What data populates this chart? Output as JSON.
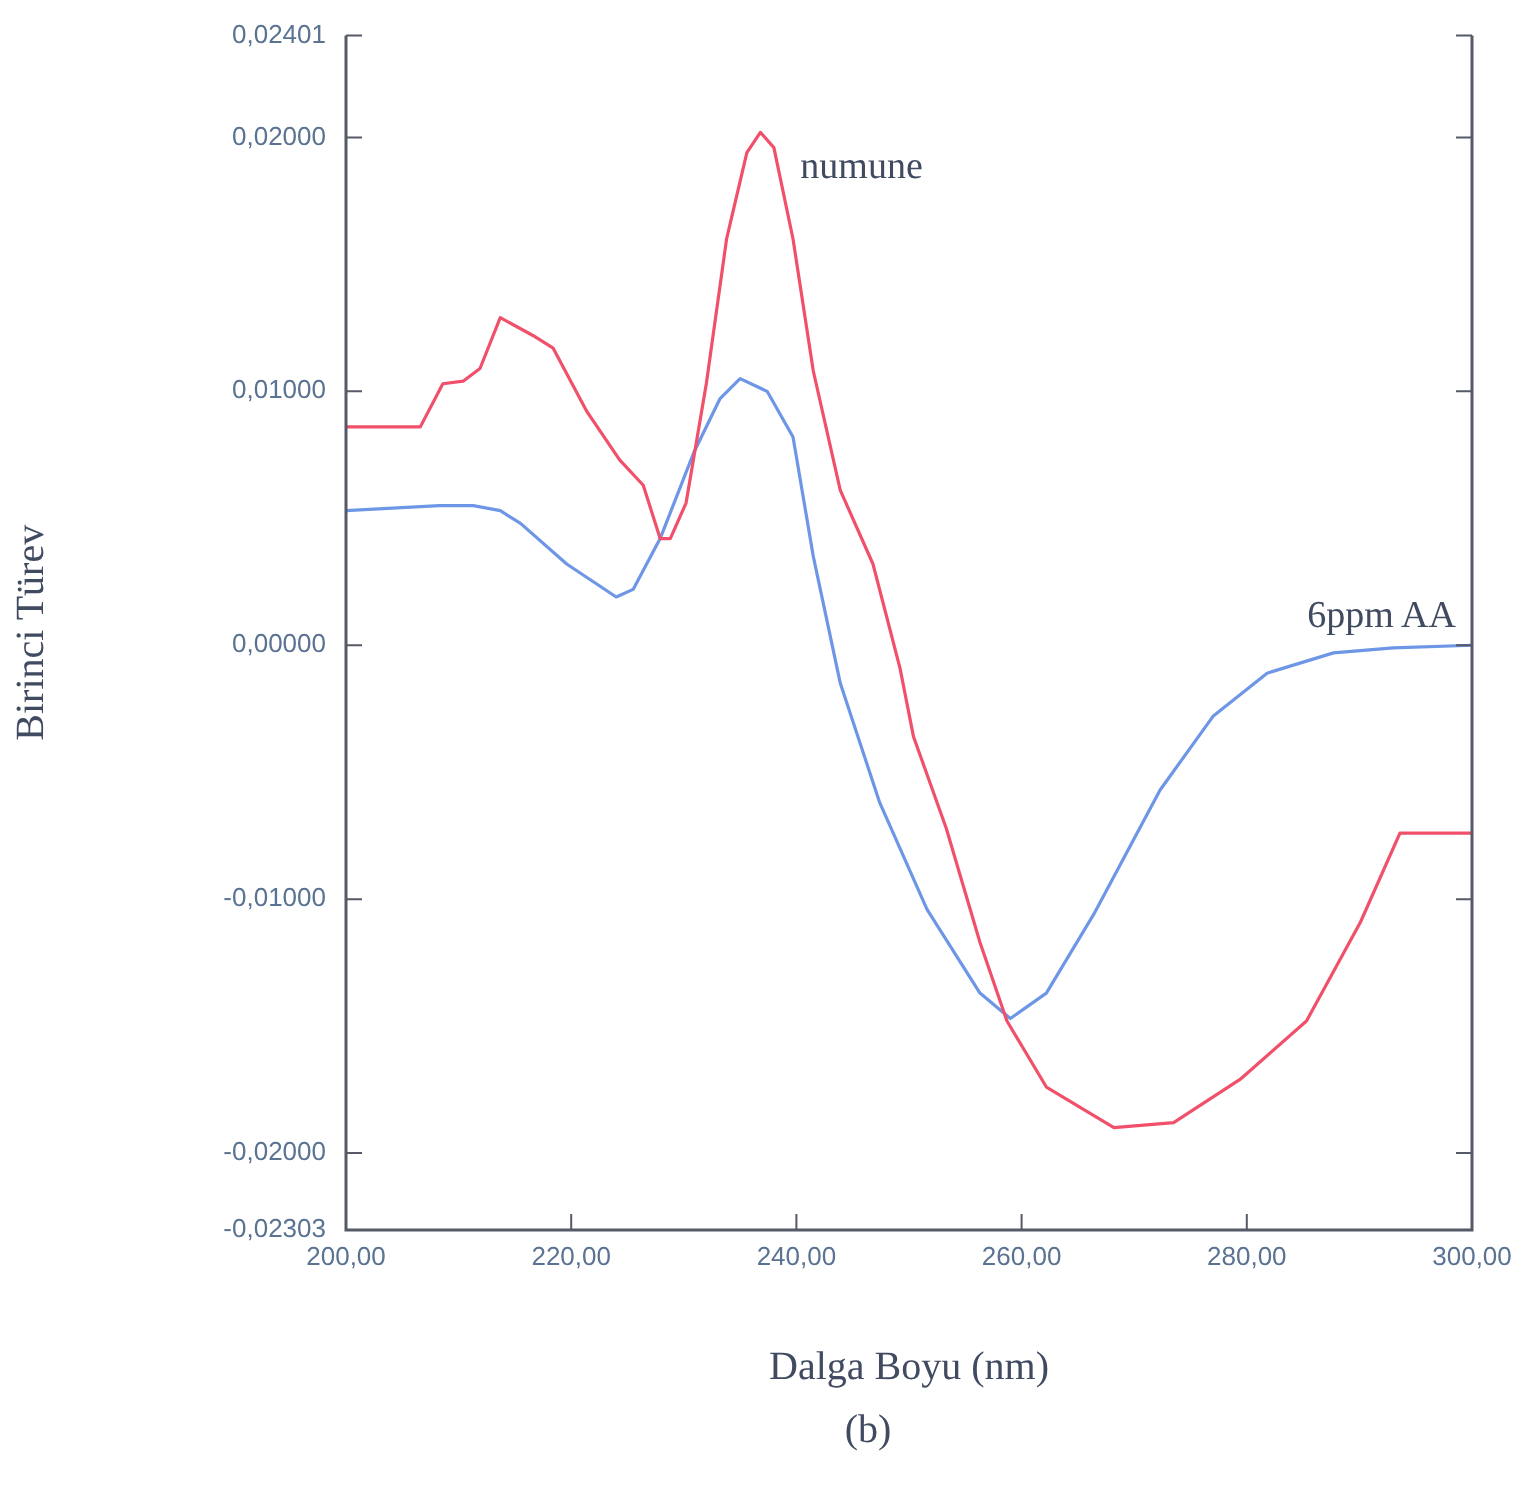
{
  "chart_data": {
    "type": "line",
    "xlabel": "Dalga Boyu (nm)",
    "ylabel": "Birinci Türev",
    "annotations": [
      "(b)"
    ],
    "xlim": [
      200,
      300
    ],
    "xticks": [
      {
        "value": 200,
        "label": "200,00"
      },
      {
        "value": 220,
        "label": "220,00"
      },
      {
        "value": 240,
        "label": "240,00"
      },
      {
        "value": 260,
        "label": "260,00"
      },
      {
        "value": 280,
        "label": "280,00"
      },
      {
        "value": 300,
        "label": "300,00"
      }
    ],
    "ylim": [
      -0.02303,
      0.02401
    ],
    "yticks": [
      {
        "value": -0.02303,
        "label": "-0,02303"
      },
      {
        "value": -0.02,
        "label": "-0,02000"
      },
      {
        "value": -0.01,
        "label": "-0,01000"
      },
      {
        "value": 0,
        "label": "0,00000"
      },
      {
        "value": 0.01,
        "label": "0,01000"
      },
      {
        "value": 0.02,
        "label": "0,02000"
      },
      {
        "value": 0.02401,
        "label": "0,02401"
      }
    ],
    "marker": "none",
    "line_style": "solid",
    "series": [
      {
        "name": "numune",
        "color": "#f0506a",
        "x": [
          200,
          206.6,
          208.6,
          210.4,
          211.9,
          213.7,
          216.6,
          218.4,
          221.4,
          224.3,
          226.4,
          227.9,
          228.8,
          230.2,
          232.0,
          233.8,
          235.6,
          236.8,
          238.0,
          239.7,
          241.5,
          243.9,
          246.8,
          249.2,
          250.4,
          253.3,
          256.3,
          258.7,
          262.2,
          268.2,
          273.5,
          279.4,
          285.3,
          290.1,
          293.6,
          300
        ],
        "values": [
          0.0086,
          0.0086,
          0.0103,
          0.0104,
          0.0109,
          0.0129,
          0.0122,
          0.0117,
          0.0092,
          0.0073,
          0.0063,
          0.0042,
          0.0042,
          0.0056,
          0.0103,
          0.016,
          0.0194,
          0.0202,
          0.0196,
          0.016,
          0.0108,
          0.0061,
          0.0032,
          -0.0009,
          -0.0036,
          -0.0072,
          -0.0117,
          -0.0148,
          -0.0174,
          -0.019,
          -0.0188,
          -0.0171,
          -0.0148,
          -0.0109,
          -0.0074,
          -0.0074
        ]
      },
      {
        "name": "6ppm AA",
        "color": "#6e96e6",
        "x": [
          200,
          208.3,
          211.3,
          213.7,
          215.5,
          219.6,
          224.0,
          225.5,
          227.9,
          230.9,
          233.2,
          235.0,
          237.4,
          239.7,
          241.5,
          243.9,
          247.4,
          251.6,
          256.3,
          259.0,
          262.2,
          266.4,
          272.3,
          277.0,
          281.8,
          287.7,
          293.0,
          300
        ],
        "values": [
          0.0053,
          0.0055,
          0.0055,
          0.0053,
          0.0048,
          0.0032,
          0.0019,
          0.0022,
          0.0042,
          0.0076,
          0.0097,
          0.0105,
          0.01,
          0.0082,
          0.0035,
          -0.0015,
          -0.0062,
          -0.0104,
          -0.0137,
          -0.0147,
          -0.0137,
          -0.0106,
          -0.0057,
          -0.0028,
          -0.0011,
          -0.0003,
          -0.0001,
          0
        ]
      }
    ]
  }
}
